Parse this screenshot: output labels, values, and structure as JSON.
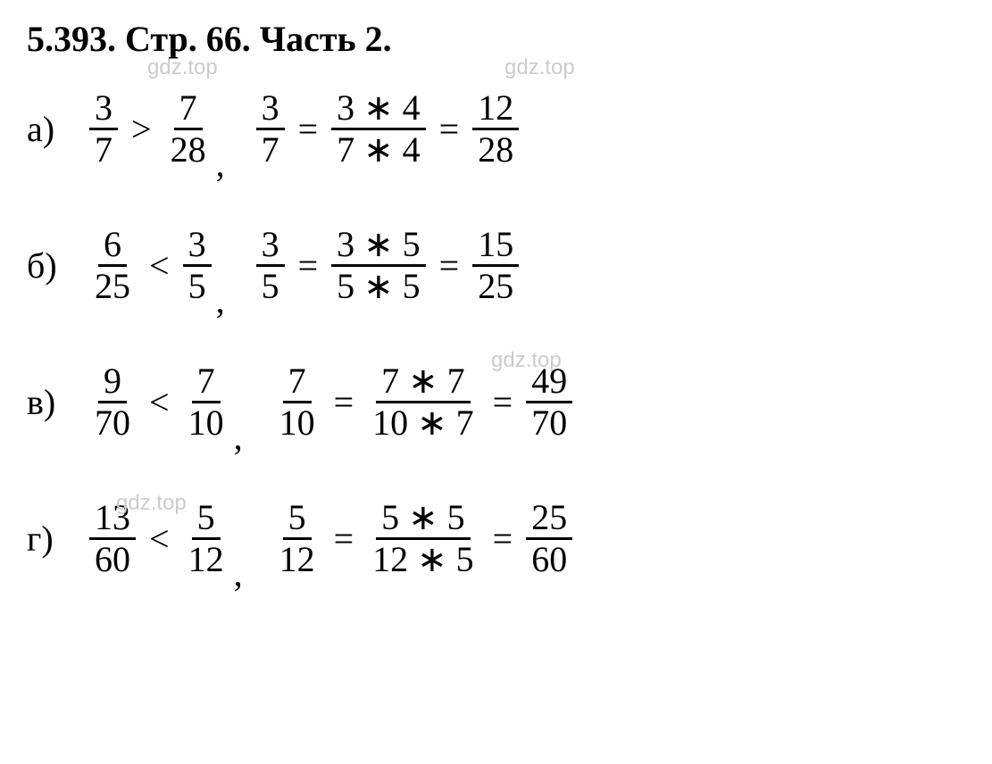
{
  "title": "5.393. Стр. 66. Часть 2.",
  "watermark": "gdz.top",
  "rows": [
    {
      "label": "а)",
      "f1": {
        "n": "3",
        "d": "7"
      },
      "rel": ">",
      "f2": {
        "n": "7",
        "d": "28"
      },
      "eq1": {
        "n": "3",
        "d": "7"
      },
      "eq2": {
        "n": "3 ∗ 4",
        "d": "7 ∗ 4"
      },
      "eq3": {
        "n": "12",
        "d": "28"
      }
    },
    {
      "label": "б)",
      "f1": {
        "n": "6",
        "d": "25"
      },
      "rel": "<",
      "f2": {
        "n": "3",
        "d": "5"
      },
      "eq1": {
        "n": "3",
        "d": "5"
      },
      "eq2": {
        "n": "3 ∗ 5",
        "d": "5 ∗ 5"
      },
      "eq3": {
        "n": "15",
        "d": "25"
      }
    },
    {
      "label": "в)",
      "f1": {
        "n": "9",
        "d": "70"
      },
      "rel": "<",
      "f2": {
        "n": "7",
        "d": "10"
      },
      "eq1": {
        "n": "7",
        "d": "10"
      },
      "eq2": {
        "n": "7 ∗ 7",
        "d": "10 ∗ 7"
      },
      "eq3": {
        "n": "49",
        "d": "70"
      }
    },
    {
      "label": "г)",
      "f1": {
        "n": "13",
        "d": "60"
      },
      "rel": "<",
      "f2": {
        "n": "5",
        "d": "12"
      },
      "eq1": {
        "n": "5",
        "d": "12"
      },
      "eq2": {
        "n": "5 ∗ 5",
        "d": "12 ∗ 5"
      },
      "eq3": {
        "n": "25",
        "d": "60"
      }
    }
  ],
  "styling": {
    "background_color": "#ffffff",
    "text_color": "#000000",
    "watermark_color": "#cccccc",
    "font_family": "Times New Roman",
    "title_fontsize": 40,
    "body_fontsize": 40,
    "watermark_fontsize": 24,
    "fraction_bar_thickness": 3
  }
}
